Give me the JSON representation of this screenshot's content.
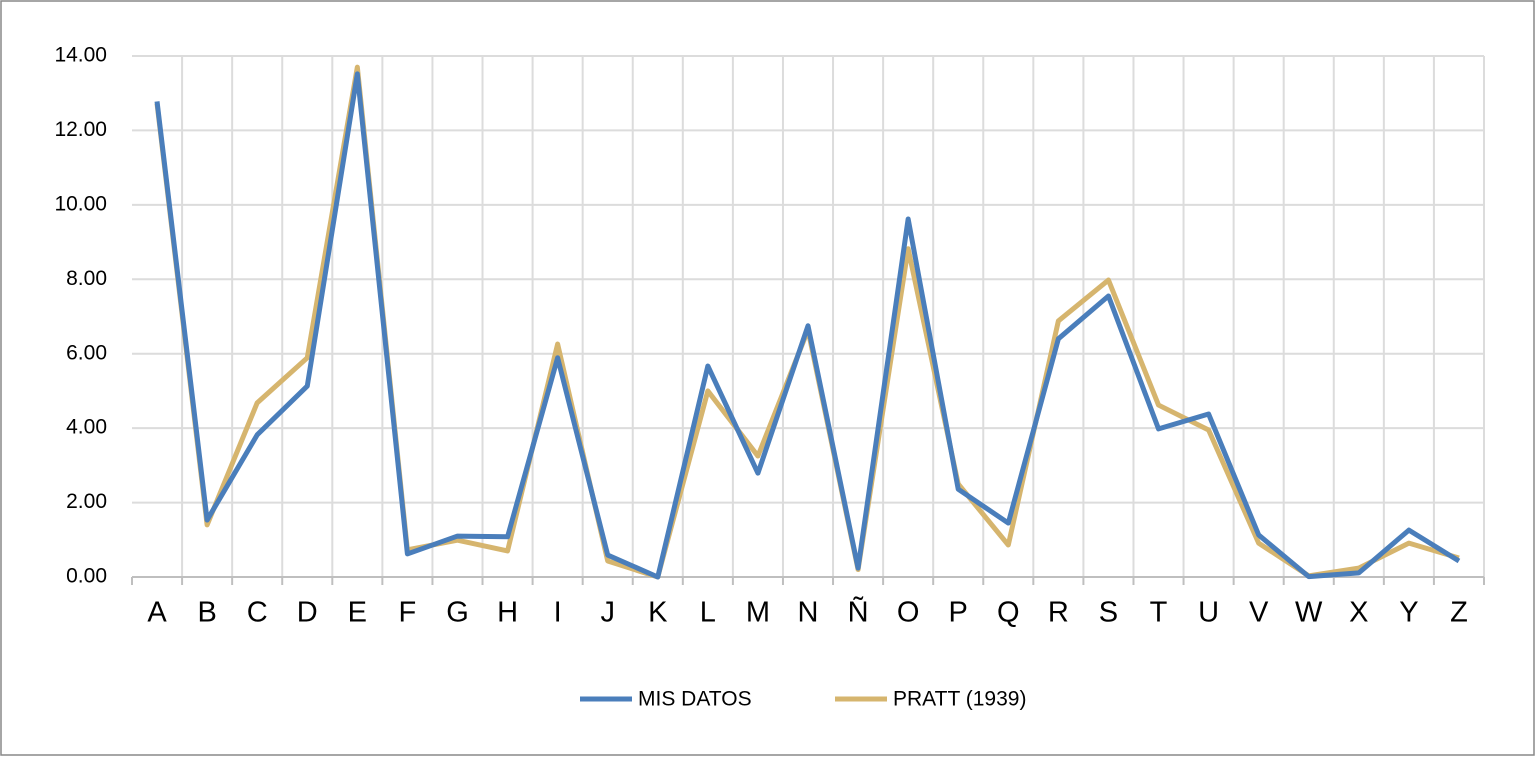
{
  "chart_data": {
    "type": "line",
    "categories": [
      "A",
      "B",
      "C",
      "D",
      "E",
      "F",
      "G",
      "H",
      "I",
      "J",
      "K",
      "L",
      "M",
      "N",
      "Ñ",
      "O",
      "P",
      "Q",
      "R",
      "S",
      "T",
      "U",
      "V",
      "W",
      "X",
      "Y",
      "Z"
    ],
    "series": [
      {
        "name": "MIS DATOS",
        "color": "#4a7ebb",
        "values": [
          12.78,
          1.53,
          3.82,
          5.13,
          13.52,
          0.62,
          1.1,
          1.08,
          5.89,
          0.59,
          0.0,
          5.67,
          2.79,
          6.75,
          0.24,
          9.62,
          2.36,
          1.45,
          6.4,
          7.55,
          3.98,
          4.38,
          1.13,
          0.01,
          0.11,
          1.26,
          0.43
        ]
      },
      {
        "name": "PRATT (1939)",
        "color": "#d6b56e",
        "values": [
          12.72,
          1.4,
          4.68,
          5.89,
          13.7,
          0.73,
          0.99,
          0.7,
          6.26,
          0.43,
          0.0,
          5.0,
          3.25,
          6.64,
          0.2,
          8.82,
          2.5,
          0.86,
          6.88,
          7.98,
          4.62,
          3.95,
          0.91,
          0.03,
          0.24,
          0.91,
          0.51
        ]
      }
    ],
    "ylim": [
      0,
      14
    ],
    "yticks": [
      {
        "value": 0,
        "label": "0.00"
      },
      {
        "value": 2,
        "label": "2.00"
      },
      {
        "value": 4,
        "label": "4.00"
      },
      {
        "value": 6,
        "label": "6.00"
      },
      {
        "value": 8,
        "label": "8.00"
      },
      {
        "value": 10,
        "label": "10.00"
      },
      {
        "value": 12,
        "label": "12.00"
      },
      {
        "value": 14,
        "label": "14.00"
      }
    ],
    "grid": true,
    "legend": "bottom"
  }
}
